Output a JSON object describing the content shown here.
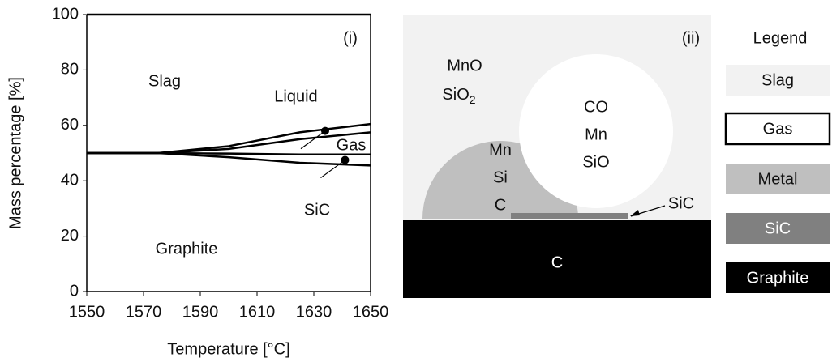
{
  "chart_data": {
    "type": "line",
    "panel_label": "(i)",
    "xlabel": "Temperature [°C]",
    "ylabel": "Mass percentage [%]",
    "x": [
      1550,
      1575,
      1600,
      1625,
      1650
    ],
    "series": [
      {
        "color": "#000000",
        "values": [
          100,
          100,
          100,
          100,
          100
        ]
      },
      {
        "color": "#000000",
        "values": [
          50,
          50,
          52.5,
          57.5,
          60.5
        ]
      },
      {
        "color": "#000000",
        "values": [
          50,
          50,
          51.5,
          55,
          57.5
        ]
      },
      {
        "color": "#000000",
        "values": [
          50,
          50,
          49.8,
          49.5,
          49.5
        ]
      },
      {
        "color": "#000000",
        "values": [
          50,
          50,
          48.5,
          46.5,
          45.5
        ]
      }
    ],
    "markers": {
      "x": [
        1634,
        1641
      ],
      "values": [
        58,
        47.5
      ]
    },
    "annotations": [
      "Slag",
      "Liquid",
      "Gas",
      "SiC",
      "Graphite"
    ],
    "xlim": [
      1550,
      1650
    ],
    "xticks": [
      1550,
      1570,
      1590,
      1610,
      1630,
      1650
    ],
    "ylim": [
      0,
      100
    ],
    "yticks": [
      0,
      20,
      40,
      60,
      80,
      100
    ],
    "grid": false
  },
  "diagram": {
    "panel_label": "(ii)",
    "slag": [
      "MnO",
      {
        "text": "SiO",
        "subscript": "2"
      }
    ],
    "gas": [
      "CO",
      "Mn",
      "SiO"
    ],
    "metal": [
      "Mn",
      "Si",
      "C"
    ],
    "sic": "SiC",
    "graphite": "C",
    "legend": {
      "title": "Legend",
      "items": [
        "Slag",
        "Gas",
        "Metal",
        "SiC",
        "Graphite"
      ]
    }
  }
}
